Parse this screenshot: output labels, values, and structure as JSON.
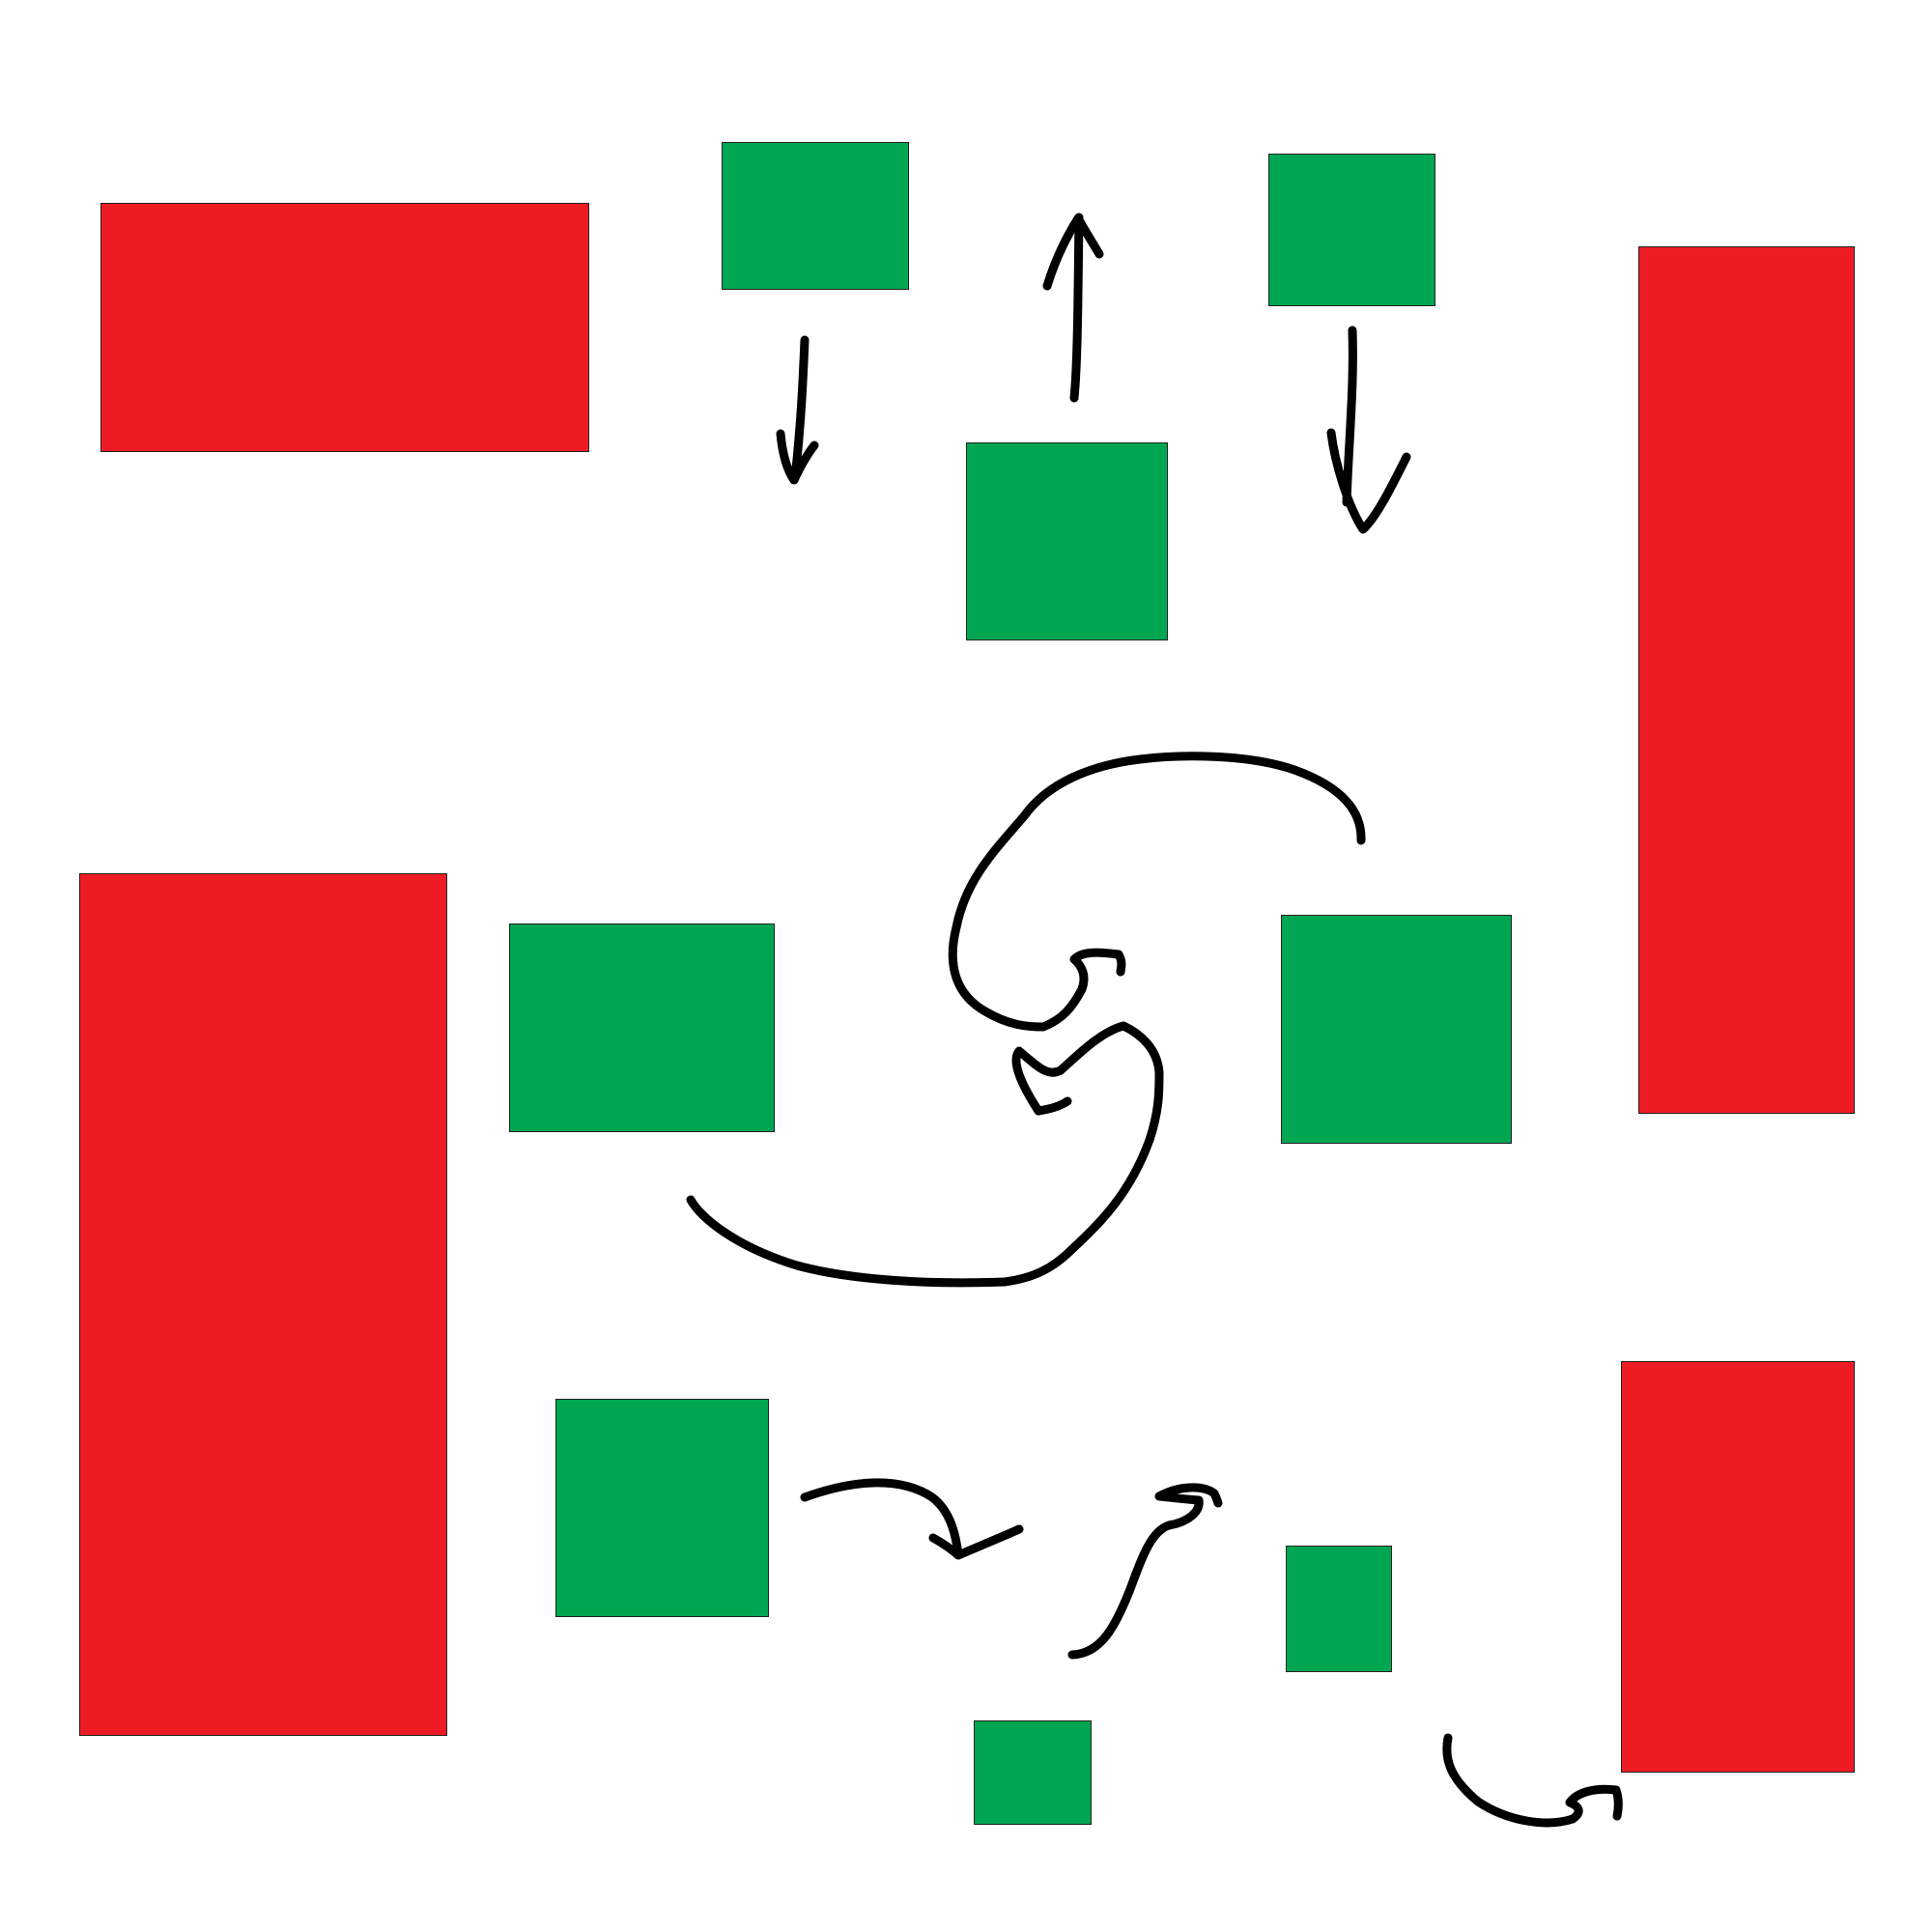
{
  "canvas": {
    "background": "#ffffff"
  },
  "colors": {
    "red": "#ed1c24",
    "green": "#00a651",
    "outline": "#222222",
    "ink": "#000000"
  },
  "blocks": [
    {
      "id": "r1",
      "color": "red"
    },
    {
      "id": "r2",
      "color": "red"
    },
    {
      "id": "r3",
      "color": "red"
    },
    {
      "id": "r4",
      "color": "red"
    },
    {
      "id": "g1",
      "color": "green"
    },
    {
      "id": "g2",
      "color": "green"
    },
    {
      "id": "g3",
      "color": "green"
    },
    {
      "id": "g4",
      "color": "green"
    },
    {
      "id": "g5",
      "color": "green"
    },
    {
      "id": "g6",
      "color": "green"
    },
    {
      "id": "g7",
      "color": "green"
    },
    {
      "id": "g8",
      "color": "green"
    }
  ],
  "strokes": [
    {
      "name": "down-arrow-left",
      "shape": "arrow",
      "direction": "down"
    },
    {
      "name": "up-arrow-center",
      "shape": "arrow",
      "direction": "up"
    },
    {
      "name": "down-arrow-right",
      "shape": "arrow",
      "direction": "down"
    },
    {
      "name": "upper-curved-arrow",
      "shape": "curved-arrow"
    },
    {
      "name": "lower-curved-arrow",
      "shape": "curved-arrow"
    },
    {
      "name": "bottom-right-pointing-arrow",
      "shape": "curved-arrow"
    },
    {
      "name": "bottom-squiggle-arrow",
      "shape": "curved-arrow"
    },
    {
      "name": "bottom-corner-hook",
      "shape": "curved-arrow"
    }
  ]
}
